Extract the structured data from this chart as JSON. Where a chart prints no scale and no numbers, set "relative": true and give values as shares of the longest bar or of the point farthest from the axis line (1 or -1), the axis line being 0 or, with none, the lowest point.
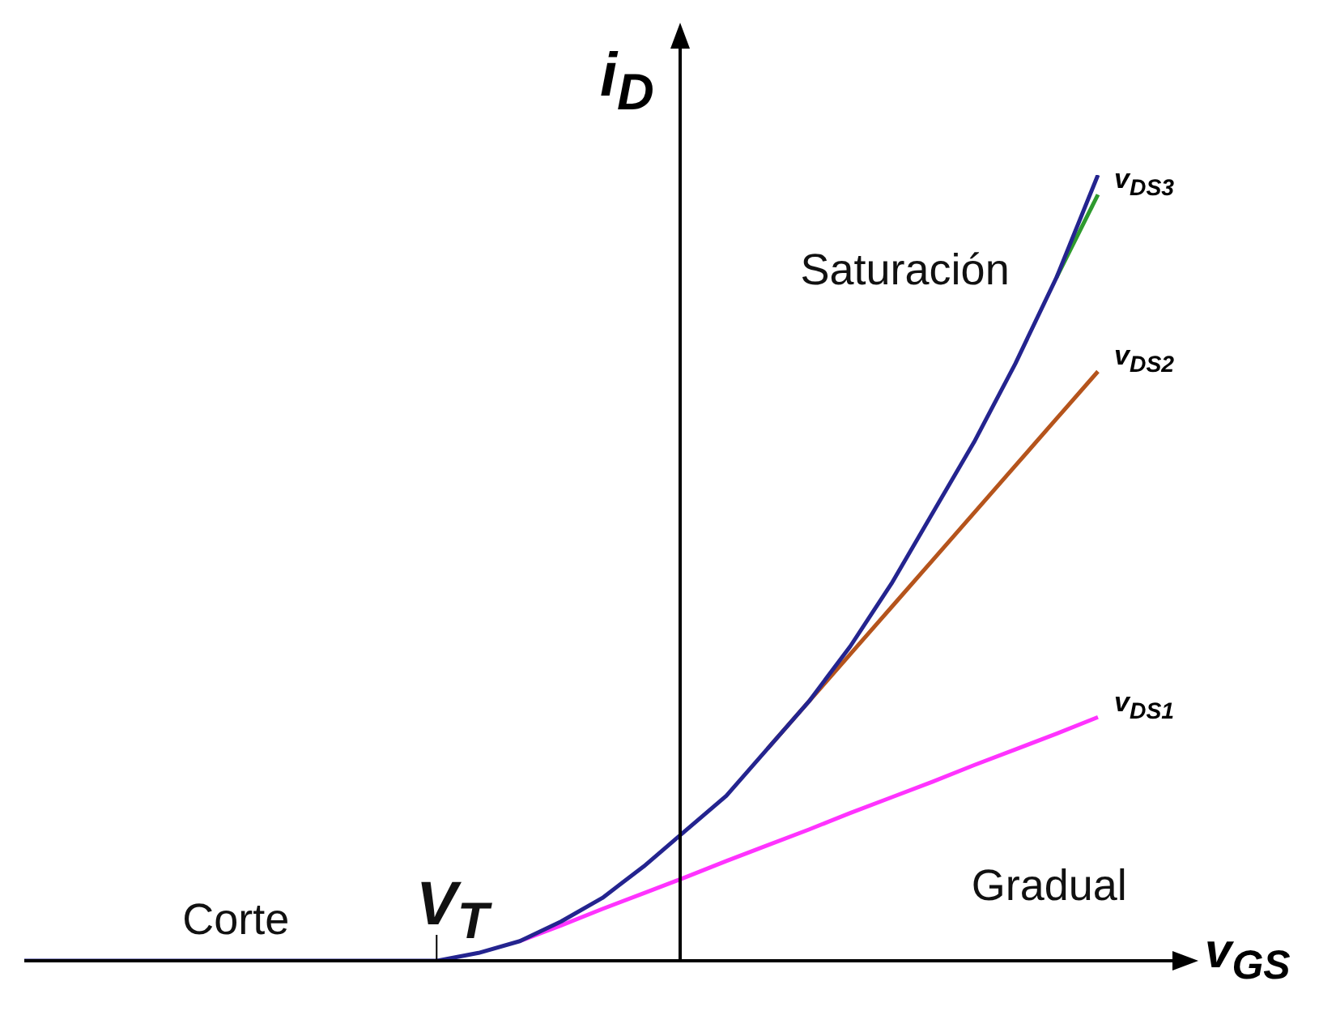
{
  "chart_data": {
    "type": "line",
    "relative": true,
    "marker": "none",
    "xlabel": "v$_{GS}$",
    "ylabel": "i$_{D}$",
    "categories": [
      null,
      null,
      null,
      null,
      null,
      null,
      null,
      null,
      null,
      null,
      null,
      null,
      null,
      null,
      null,
      null,
      null,
      null,
      null,
      null,
      null,
      null,
      null,
      null,
      null,
      null,
      null
    ],
    "series": [
      {
        "color": "#24248f",
        "values": [
          0,
          0,
          0,
          0,
          0,
          0,
          0,
          0,
          0,
          0,
          0,
          0.01,
          0.025,
          0.05,
          0.08,
          0.12,
          0.165,
          0.21,
          0.27,
          0.33,
          0.4,
          0.48,
          0.57,
          0.66,
          0.76,
          0.87,
          1
        ]
      },
      {
        "name": "v$_{DS1}$",
        "color": "#ff33ff",
        "values": [
          null,
          null,
          null,
          null,
          null,
          null,
          null,
          null,
          null,
          null,
          null,
          null,
          0.025,
          0.045,
          0.066,
          0.086,
          0.106,
          0.127,
          0.147,
          0.167,
          0.188,
          0.208,
          0.228,
          0.249,
          0.269,
          0.289,
          0.31
        ]
      },
      {
        "name": "v$_{DS2}$",
        "color": "#b5541c",
        "values": [
          null,
          null,
          null,
          null,
          null,
          null,
          null,
          null,
          null,
          null,
          null,
          null,
          null,
          null,
          null,
          null,
          null,
          null,
          0.27,
          0.33,
          0.39,
          0.45,
          0.51,
          0.57,
          0.63,
          0.69,
          0.75
        ]
      },
      {
        "name": "v$_{DS3}$",
        "color": "#2e9a2e",
        "values": [
          null,
          null,
          null,
          null,
          null,
          null,
          null,
          null,
          null,
          null,
          null,
          null,
          null,
          null,
          null,
          null,
          null,
          null,
          null,
          null,
          null,
          null,
          null,
          null,
          null,
          0.87,
          0.975
        ]
      }
    ],
    "annotations": [
      "Corte",
      "V$_{T}$",
      "Saturación",
      "Gradual"
    ]
  }
}
